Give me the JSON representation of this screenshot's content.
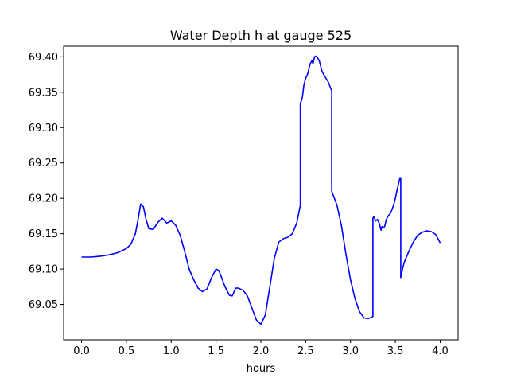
{
  "chart_data": {
    "type": "line",
    "title": "Water Depth h at gauge 525",
    "xlabel": "hours",
    "ylabel": "",
    "xlim": [
      -0.2,
      4.2
    ],
    "ylim": [
      69.0,
      69.415
    ],
    "xticks": [
      0.0,
      0.5,
      1.0,
      1.5,
      2.0,
      2.5,
      3.0,
      3.5,
      4.0
    ],
    "xtick_labels": [
      "0.0",
      "0.5",
      "1.0",
      "1.5",
      "2.0",
      "2.5",
      "3.0",
      "3.5",
      "4.0"
    ],
    "yticks": [
      69.05,
      69.1,
      69.15,
      69.2,
      69.25,
      69.3,
      69.35,
      69.4
    ],
    "ytick_labels": [
      "69.05",
      "69.10",
      "69.15",
      "69.20",
      "69.25",
      "69.30",
      "69.35",
      "69.40"
    ],
    "grid": false,
    "series": [
      {
        "color": "#0000ff",
        "x": [
          0.0,
          0.1,
          0.2,
          0.3,
          0.4,
          0.45,
          0.5,
          0.55,
          0.6,
          0.63,
          0.66,
          0.69,
          0.72,
          0.75,
          0.8,
          0.85,
          0.9,
          0.95,
          1.0,
          1.05,
          1.1,
          1.15,
          1.2,
          1.25,
          1.3,
          1.35,
          1.4,
          1.45,
          1.5,
          1.53,
          1.55,
          1.6,
          1.65,
          1.68,
          1.72,
          1.75,
          1.8,
          1.85,
          1.9,
          1.95,
          2.0,
          2.05,
          2.1,
          2.15,
          2.2,
          2.25,
          2.3,
          2.35,
          2.4,
          2.44,
          2.44,
          2.45,
          2.46,
          2.47,
          2.48,
          2.5,
          2.52,
          2.55,
          2.57,
          2.58,
          2.6,
          2.62,
          2.65,
          2.68,
          2.7,
          2.75,
          2.79,
          2.79,
          2.85,
          2.9,
          2.95,
          3.0,
          3.05,
          3.1,
          3.15,
          3.2,
          3.25,
          3.25,
          3.26,
          3.28,
          3.3,
          3.32,
          3.33,
          3.34,
          3.35,
          3.36,
          3.38,
          3.4,
          3.42,
          3.45,
          3.48,
          3.5,
          3.52,
          3.55,
          3.56,
          3.56,
          3.58,
          3.6,
          3.65,
          3.7,
          3.75,
          3.8,
          3.85,
          3.9,
          3.95,
          4.0
        ],
        "y": [
          69.117,
          69.117,
          69.118,
          69.12,
          69.123,
          69.126,
          69.129,
          69.135,
          69.15,
          69.17,
          69.192,
          69.188,
          69.17,
          69.157,
          69.156,
          69.166,
          69.172,
          69.165,
          69.168,
          69.162,
          69.148,
          69.125,
          69.1,
          69.085,
          69.073,
          69.068,
          69.072,
          69.088,
          69.1,
          69.098,
          69.092,
          69.075,
          69.063,
          69.062,
          69.073,
          69.073,
          69.07,
          69.062,
          69.045,
          69.028,
          69.022,
          69.035,
          69.075,
          69.115,
          69.138,
          69.143,
          69.145,
          69.15,
          69.165,
          69.19,
          69.335,
          69.337,
          69.341,
          69.35,
          69.36,
          69.37,
          69.375,
          69.39,
          69.395,
          69.39,
          69.4,
          69.401,
          69.395,
          69.38,
          69.375,
          69.365,
          69.352,
          69.21,
          69.19,
          69.16,
          69.12,
          69.085,
          69.058,
          69.04,
          69.031,
          69.03,
          69.033,
          69.172,
          69.174,
          69.168,
          69.17,
          69.165,
          69.16,
          69.155,
          69.16,
          69.158,
          69.16,
          69.17,
          69.175,
          69.18,
          69.19,
          69.2,
          69.212,
          69.228,
          69.228,
          69.088,
          69.1,
          69.11,
          69.125,
          69.138,
          69.148,
          69.152,
          69.154,
          69.153,
          69.149,
          69.137
        ]
      }
    ]
  }
}
